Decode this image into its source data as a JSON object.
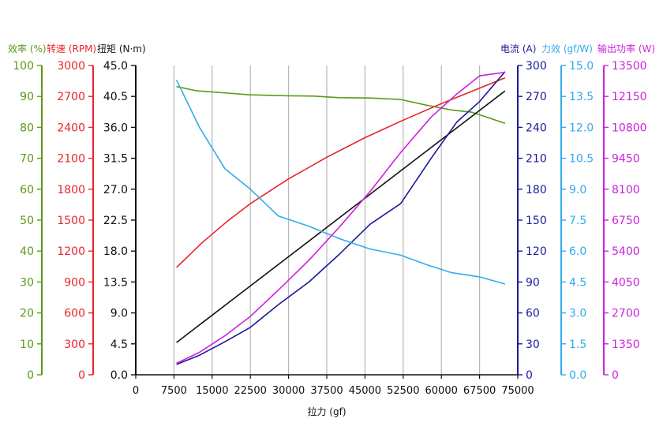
{
  "chart_data": {
    "type": "line",
    "xlabel": "拉力 (gf)",
    "x_ticks": [
      "0",
      "7500",
      "15000",
      "22500",
      "30000",
      "37500",
      "45000",
      "52500",
      "60000",
      "67500",
      "75000"
    ],
    "xlim": [
      0,
      75000
    ],
    "grid": true,
    "axes": [
      {
        "key": "eff",
        "label": "效率 (%)",
        "side": "left",
        "color": "#5a9a18",
        "min": 0,
        "max": 100,
        "ticks": [
          "0",
          "10",
          "20",
          "30",
          "40",
          "50",
          "60",
          "70",
          "80",
          "90",
          "100"
        ]
      },
      {
        "key": "rpm",
        "label": "转速 (RPM)",
        "side": "left",
        "color": "#e8242a",
        "min": 0,
        "max": 3000,
        "ticks": [
          "0",
          "300",
          "600",
          "900",
          "1200",
          "1500",
          "1800",
          "2100",
          "2400",
          "2700",
          "3000"
        ]
      },
      {
        "key": "torque",
        "label": "扭矩 (N·m)",
        "side": "left",
        "color": "#111111",
        "min": 0,
        "max": 45,
        "ticks": [
          "0.0",
          "4.5",
          "9.0",
          "13.5",
          "18.0",
          "22.5",
          "27.0",
          "31.5",
          "36.0",
          "40.5",
          "45.0"
        ]
      },
      {
        "key": "current",
        "label": "电流 (A)",
        "side": "right",
        "color": "#1a1a9a",
        "min": 0,
        "max": 300,
        "ticks": [
          "0",
          "30",
          "60",
          "90",
          "120",
          "150",
          "180",
          "210",
          "240",
          "270",
          "300"
        ]
      },
      {
        "key": "forceeff",
        "label": "力效 (gf/W)",
        "side": "right",
        "color": "#33aaee",
        "min": 0,
        "max": 15,
        "ticks": [
          "0.0",
          "1.5",
          "3.0",
          "4.5",
          "6.0",
          "7.5",
          "9.0",
          "10.5",
          "12.0",
          "13.5",
          "15.0"
        ]
      },
      {
        "key": "power",
        "label": "输出功率 (W)",
        "side": "right",
        "color": "#cc22dd",
        "min": 0,
        "max": 13500,
        "ticks": [
          "0",
          "1350",
          "2700",
          "4050",
          "5400",
          "6750",
          "8100",
          "9450",
          "10800",
          "12150",
          "13500"
        ]
      }
    ],
    "series": [
      {
        "axis": "eff",
        "color": "#5a9a18",
        "x": [
          8000,
          12000,
          17000,
          22500,
          30000,
          35000,
          40000,
          46000,
          52000,
          57000,
          62000,
          66000,
          72500
        ],
        "y": [
          93.2,
          91.8,
          91.2,
          90.5,
          90.2,
          90.1,
          89.6,
          89.5,
          89.0,
          87.2,
          85.6,
          84.9,
          81.3
        ]
      },
      {
        "axis": "rpm",
        "color": "#e8242a",
        "x": [
          8000,
          13000,
          18000,
          22500,
          30000,
          37500,
          45000,
          52500,
          60000,
          67500,
          72500
        ],
        "y": [
          1040,
          1280,
          1490,
          1660,
          1900,
          2110,
          2300,
          2470,
          2630,
          2780,
          2880
        ]
      },
      {
        "axis": "torque",
        "color": "#111111",
        "x": [
          8000,
          72500
        ],
        "y": [
          4.7,
          41.3
        ]
      },
      {
        "axis": "current",
        "color": "#1a1a9a",
        "x": [
          8000,
          12500,
          17500,
          22500,
          28000,
          34000,
          40000,
          46000,
          52000,
          58000,
          63000,
          67500,
          72500
        ],
        "y": [
          10,
          19,
          32,
          46,
          68,
          90,
          117,
          146,
          166,
          210,
          245,
          265,
          294
        ]
      },
      {
        "axis": "forceeff",
        "color": "#33aaee",
        "x": [
          8000,
          12500,
          17500,
          22500,
          28000,
          34000,
          40000,
          46000,
          52000,
          57000,
          62000,
          67500,
          72500
        ],
        "y": [
          14.3,
          12.0,
          10.0,
          9.0,
          7.7,
          7.2,
          6.6,
          6.1,
          5.8,
          5.35,
          4.95,
          4.75,
          4.4
        ]
      },
      {
        "axis": "power",
        "color": "#cc22dd",
        "x": [
          8000,
          12500,
          17500,
          22500,
          28000,
          34000,
          40000,
          46000,
          52000,
          58000,
          63000,
          67500,
          72500
        ],
        "y": [
          500,
          980,
          1700,
          2550,
          3700,
          5000,
          6450,
          8000,
          9700,
          11250,
          12250,
          13050,
          13200
        ]
      }
    ]
  }
}
